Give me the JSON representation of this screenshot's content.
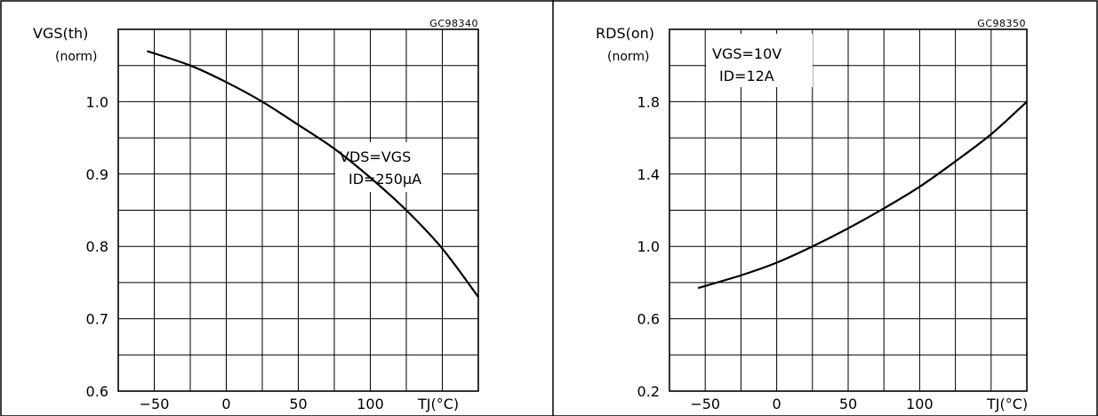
{
  "chart_data": [
    {
      "type": "line",
      "code": "GC98340",
      "ylabel_main": "VGS(th)",
      "ylabel_sub": "(norm)",
      "xlabel": "TJ(°C)",
      "annotation": [
        "VDS=VGS",
        "ID=250µA"
      ],
      "x_ticks": [
        "-50",
        "0",
        "50",
        "100"
      ],
      "y_ticks": [
        "1.0",
        "0.9",
        "0.8",
        "0.7",
        "0.6"
      ],
      "xlim": [
        -75,
        175
      ],
      "ylim": [
        0.6,
        1.1
      ],
      "series": [
        {
          "x": [
            -55,
            -25,
            0,
            25,
            50,
            75,
            100,
            125,
            150,
            175
          ],
          "y": [
            1.07,
            1.05,
            1.027,
            1.0,
            0.968,
            0.935,
            0.895,
            0.85,
            0.797,
            0.73
          ]
        }
      ]
    },
    {
      "type": "line",
      "code": "GC98350",
      "ylabel_main": "RDS(on)",
      "ylabel_sub": "(norm)",
      "xlabel": "TJ(°C)",
      "annotation": [
        "VGS=10V",
        "ID=12A"
      ],
      "x_ticks": [
        "-50",
        "0",
        "50",
        "100"
      ],
      "y_ticks": [
        "1.8",
        "1.4",
        "1.0",
        "0.6",
        "0.2"
      ],
      "xlim": [
        -75,
        175
      ],
      "ylim": [
        0.2,
        2.2
      ],
      "series": [
        {
          "x": [
            -55,
            -25,
            0,
            25,
            50,
            75,
            100,
            125,
            150,
            175
          ],
          "y": [
            0.77,
            0.84,
            0.91,
            1.0,
            1.1,
            1.21,
            1.33,
            1.47,
            1.62,
            1.8
          ]
        }
      ]
    }
  ]
}
